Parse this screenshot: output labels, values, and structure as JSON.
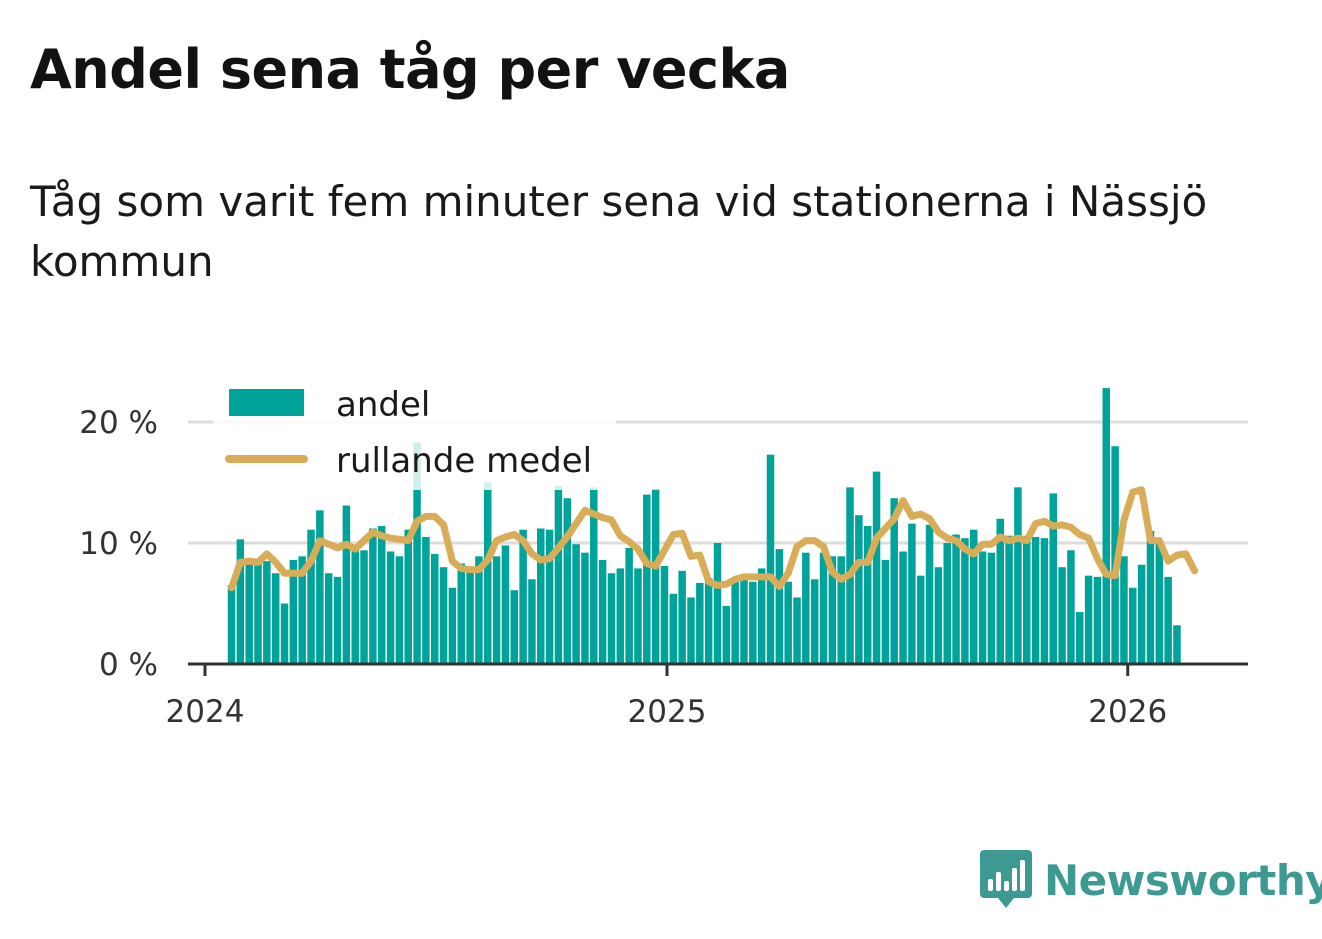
{
  "title": "Andel sena tåg per vecka",
  "subtitle": "Tåg som varit fem minuter sena vid stationerna i Nässjö kommun",
  "brand": {
    "name": "Newsworthy",
    "color": "#3d9a93",
    "icon": "newsworthy-logo-icon"
  },
  "colors": {
    "bars": "#00a39a",
    "line": "#d9ac58",
    "grid": "#dddddd",
    "axis": "#333333"
  },
  "chart_data": {
    "type": "bar",
    "title": "Andel sena tåg per vecka",
    "subtitle": "Tåg som varit fem minuter sena vid stationerna i Nässjö kommun",
    "xlabel": "",
    "ylabel": "",
    "x_ticks": [
      "2024",
      "2025",
      "2026"
    ],
    "y_ticks": [
      0,
      10,
      20
    ],
    "y_tick_labels": [
      "0 %",
      "10 %",
      "20 %"
    ],
    "ylim": [
      0,
      23
    ],
    "grid": true,
    "legend": {
      "placement": "top-left",
      "entries": [
        "andel",
        "rullande medel"
      ]
    },
    "x_start": "2024-01-22",
    "x_interval": "week",
    "series": [
      {
        "name": "andel",
        "kind": "bar",
        "values": [
          6.5,
          10.3,
          8.4,
          8.7,
          8.5,
          7.5,
          5.0,
          8.6,
          8.9,
          11.1,
          12.7,
          7.5,
          7.2,
          13.1,
          9.8,
          9.4,
          11.2,
          11.4,
          9.3,
          8.9,
          11.1,
          18.3,
          10.5,
          9.1,
          8.0,
          6.3,
          8.3,
          7.9,
          8.9,
          15.0,
          8.9,
          9.8,
          6.1,
          11.1,
          7.0,
          11.2,
          11.1,
          14.7,
          13.7,
          9.9,
          9.2,
          14.6,
          8.6,
          7.5,
          7.9,
          9.6,
          7.9,
          14.0,
          14.4,
          8.1,
          5.8,
          7.7,
          5.5,
          6.7,
          7.1,
          10.0,
          4.8,
          7.0,
          7.0,
          6.8,
          7.9,
          17.3,
          9.5,
          6.8,
          5.5,
          9.2,
          7.0,
          9.2,
          8.9,
          8.9,
          14.6,
          12.3,
          11.4,
          15.9,
          8.6,
          13.7,
          9.3,
          11.6,
          7.3,
          11.5,
          8.0,
          10.0,
          10.7,
          10.4,
          11.1,
          9.3,
          9.2,
          12.0,
          10.6,
          14.6,
          10.6,
          10.5,
          10.4,
          14.1,
          8.0,
          9.4,
          4.3,
          7.3,
          7.2,
          22.8,
          18.0,
          8.9,
          6.3,
          8.2,
          11.0,
          10.0,
          7.2,
          3.2
        ]
      },
      {
        "name": "rullande medel",
        "kind": "line",
        "values": [
          6.3,
          8.4,
          8.5,
          8.4,
          9.1,
          8.4,
          7.5,
          7.5,
          7.5,
          8.5,
          10.2,
          9.9,
          9.6,
          9.9,
          9.5,
          10.2,
          10.9,
          10.6,
          10.4,
          10.3,
          10.2,
          11.8,
          12.2,
          12.2,
          11.5,
          8.5,
          7.9,
          7.8,
          7.8,
          8.6,
          10.2,
          10.5,
          10.7,
          10.2,
          9.1,
          8.6,
          8.7,
          9.6,
          10.5,
          11.6,
          12.7,
          12.4,
          12.1,
          11.9,
          10.6,
          10.1,
          9.5,
          8.3,
          8.1,
          9.4,
          10.7,
          10.8,
          8.9,
          9.0,
          6.8,
          6.5,
          6.6,
          7.0,
          7.2,
          7.2,
          7.2,
          7.2,
          6.4,
          7.5,
          9.7,
          10.2,
          10.2,
          9.7,
          7.6,
          7.0,
          7.4,
          8.4,
          8.4,
          10.4,
          11.2,
          12.0,
          13.5,
          12.2,
          12.4,
          12.0,
          10.9,
          10.4,
          10.2,
          9.5,
          9.1,
          9.9,
          9.9,
          10.5,
          10.2,
          10.4,
          10.2,
          11.6,
          11.8,
          11.4,
          11.5,
          11.3,
          10.7,
          10.4,
          8.7,
          7.4,
          7.3,
          11.9,
          14.2,
          14.4,
          10.2,
          10.2,
          8.5,
          9.0,
          9.1,
          7.7
        ]
      }
    ]
  }
}
